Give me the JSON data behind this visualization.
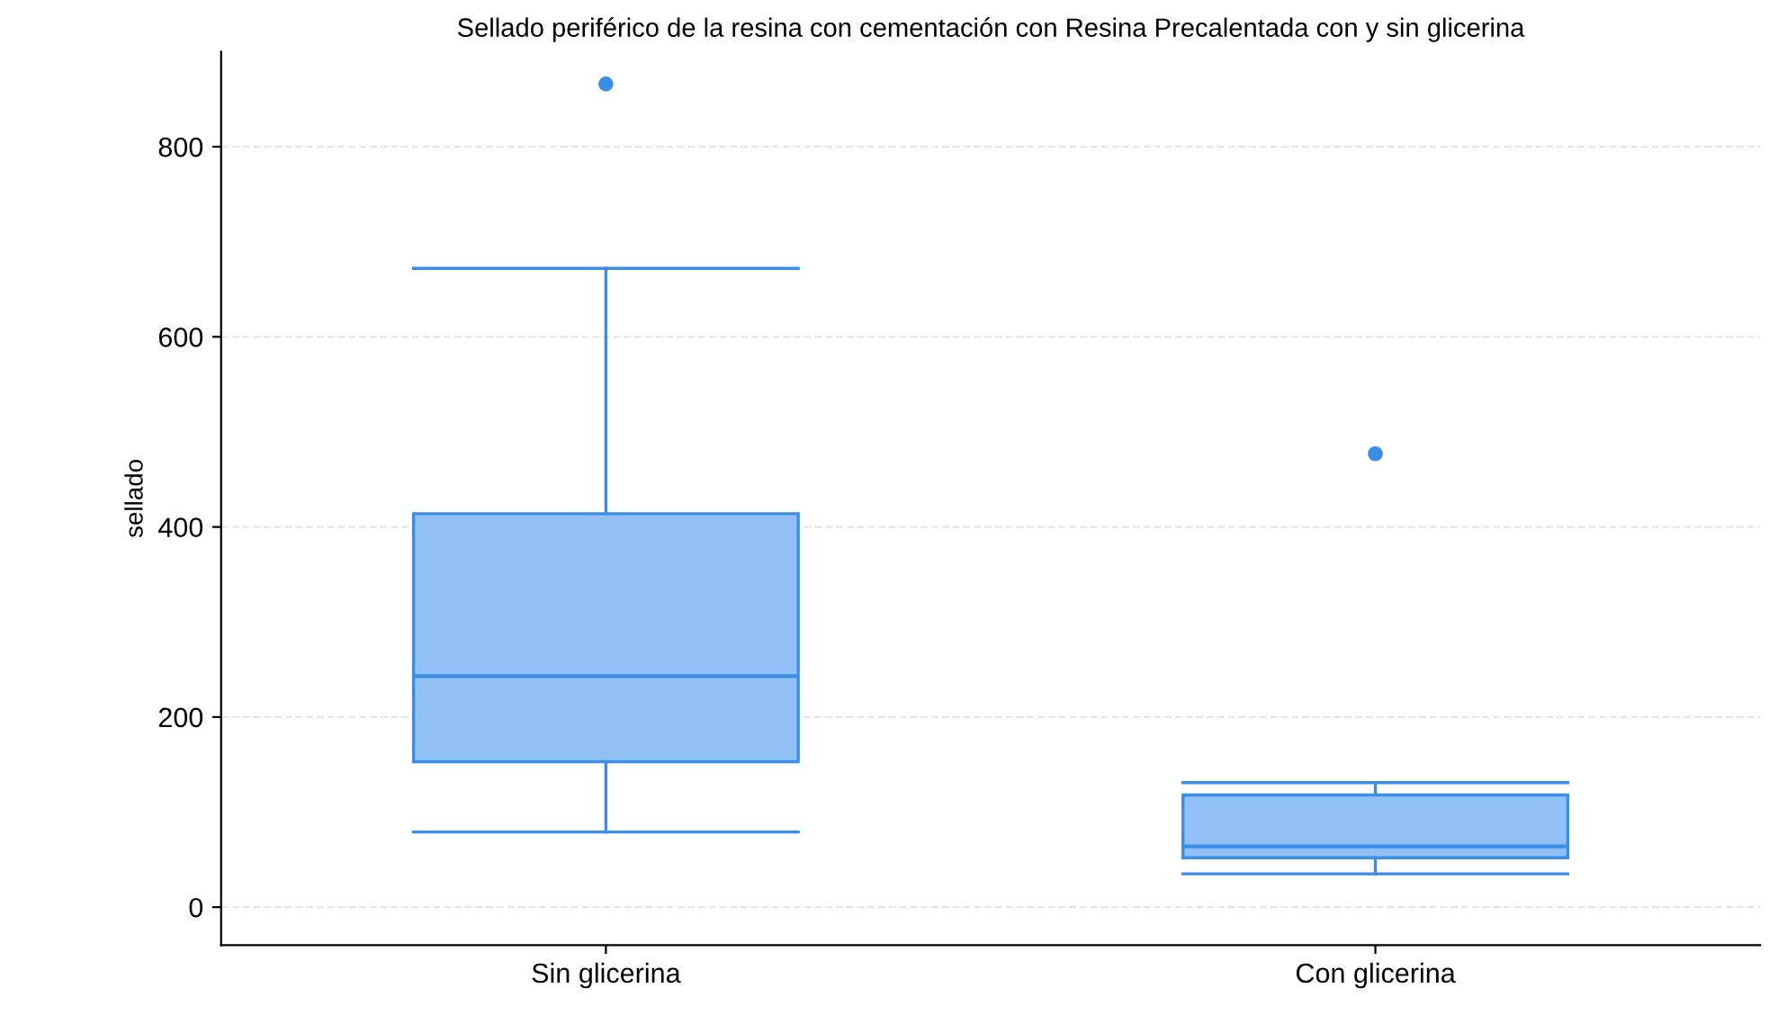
{
  "chart_data": {
    "type": "box",
    "title": "Sellado periférico de la resina con cementación con Resina Precalentada con y sin glicerina",
    "ylabel": "sellado",
    "categories": [
      "Sin glicerina",
      "Con glicerina"
    ],
    "boxes": [
      {
        "low": 79,
        "q1": 153,
        "median": 243,
        "q3": 414,
        "high": 672,
        "outliers": [
          866
        ]
      },
      {
        "low": 35,
        "q1": 52,
        "median": 64,
        "q3": 118,
        "high": 131,
        "outliers": [
          477
        ]
      }
    ],
    "color": "#90c0f5",
    "ylim": [
      -40,
      900
    ],
    "yticks": [
      0,
      200,
      400,
      600,
      800
    ],
    "grid": "y"
  }
}
